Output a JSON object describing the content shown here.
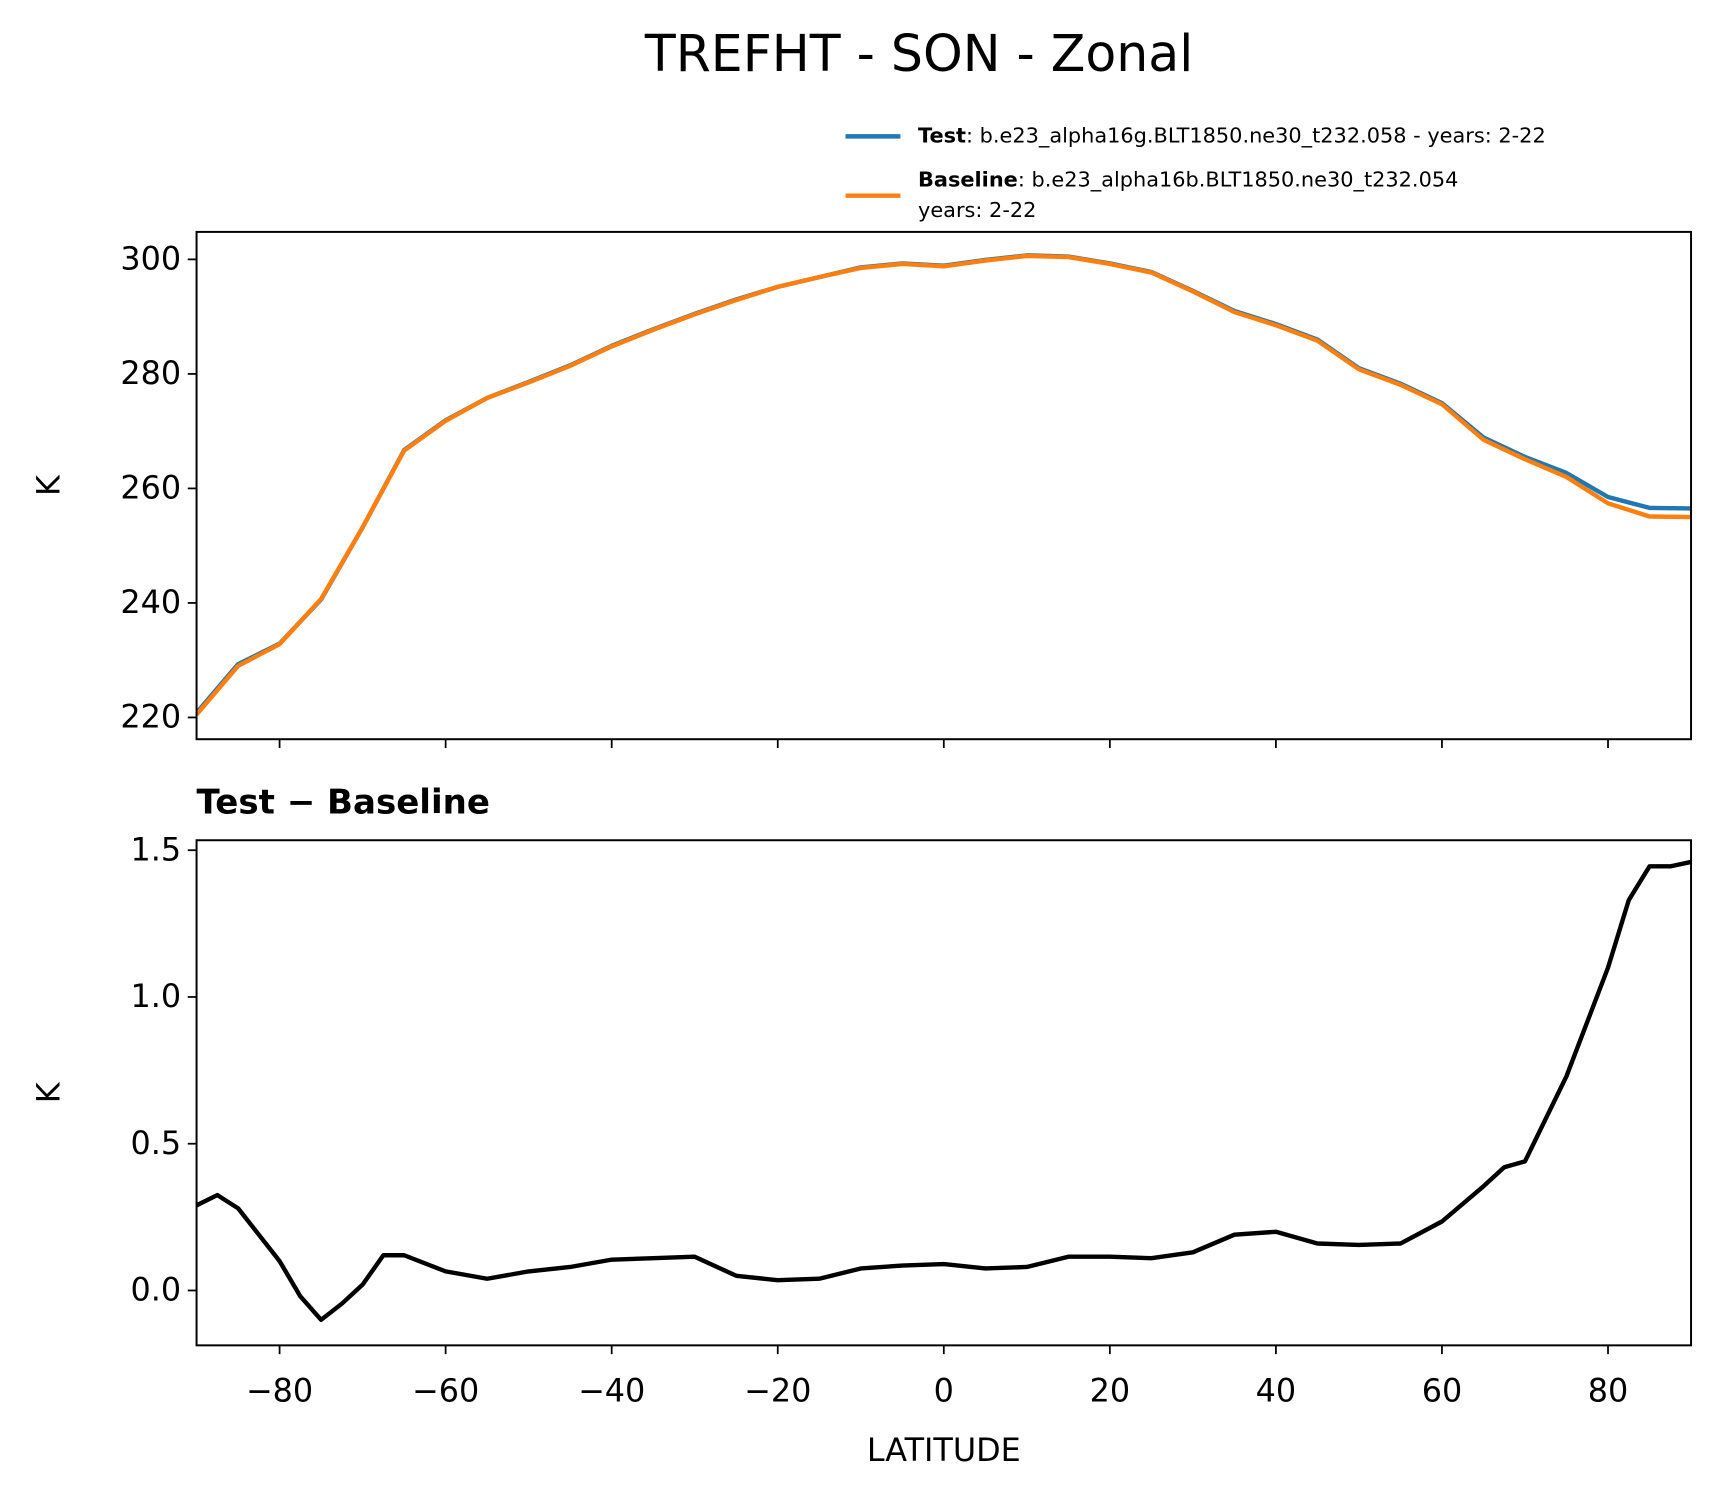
{
  "chart_data": [
    {
      "type": "line",
      "title": "TREFHT - SON - Zonal",
      "ylabel": "K",
      "x": [
        -90,
        -85,
        -80,
        -75,
        -70,
        -65,
        -60,
        -55,
        -50,
        -45,
        -40,
        -35,
        -30,
        -25,
        -20,
        -15,
        -10,
        -5,
        0,
        5,
        10,
        15,
        20,
        25,
        30,
        35,
        40,
        45,
        50,
        55,
        60,
        65,
        70,
        75,
        80,
        85,
        90
      ],
      "series": [
        {
          "name": "Test",
          "description": [
            ": b.e23_alpha16g.BLT1850.ne30_t232.058 - years: 2-22"
          ],
          "color": "#1f77b4",
          "values": [
            220.8,
            229.3,
            232.9,
            240.6,
            253.2,
            266.7,
            271.9,
            275.8,
            278.6,
            281.5,
            284.9,
            287.8,
            290.5,
            293.0,
            295.2,
            296.9,
            298.6,
            299.3,
            298.9,
            299.9,
            300.7,
            300.5,
            299.3,
            297.8,
            294.5,
            291.0,
            288.7,
            286.0,
            281.0,
            278.3,
            274.9,
            268.9,
            265.5,
            262.7,
            258.5,
            256.6,
            256.5
          ]
        },
        {
          "name": "Baseline",
          "description": [
            ": b.e23_alpha16b.BLT1850.ne30_t232.054",
            "years: 2-22"
          ],
          "color": "#ff7f0e",
          "values": [
            220.5,
            229.0,
            232.8,
            240.7,
            253.2,
            266.6,
            271.8,
            275.8,
            278.5,
            281.4,
            284.8,
            287.7,
            290.4,
            292.9,
            295.2,
            296.9,
            298.5,
            299.2,
            298.8,
            299.8,
            300.6,
            300.4,
            299.2,
            297.7,
            294.4,
            290.8,
            288.5,
            285.8,
            280.8,
            278.1,
            274.7,
            268.5,
            265.1,
            262.0,
            257.4,
            255.1,
            255.0
          ]
        }
      ],
      "xlim": [
        -90,
        90
      ],
      "xticks": [
        -80,
        -60,
        -40,
        -20,
        0,
        20,
        40,
        60,
        80
      ],
      "show_xtick_labels": false,
      "ylim": [
        216.2,
        304.8
      ],
      "yticks": [
        220,
        240,
        260,
        280,
        300
      ]
    },
    {
      "type": "line",
      "title": "Test − Baseline",
      "ylabel": "K",
      "xlabel": "LATITUDE",
      "x": [
        -90,
        -87.5,
        -85,
        -82.5,
        -80,
        -77.5,
        -75,
        -72.5,
        -70,
        -67.5,
        -65,
        -60,
        -55,
        -50,
        -45,
        -40,
        -35,
        -30,
        -25,
        -20,
        -15,
        -10,
        -5,
        0,
        5,
        10,
        15,
        20,
        25,
        30,
        35,
        40,
        45,
        50,
        55,
        60,
        65,
        67.5,
        70,
        75,
        80,
        82.5,
        85,
        87.5,
        90
      ],
      "series": [
        {
          "color": "#000000",
          "values": [
            0.29,
            0.325,
            0.28,
            0.19,
            0.1,
            -0.02,
            -0.1,
            -0.045,
            0.02,
            0.12,
            0.12,
            0.065,
            0.04,
            0.065,
            0.08,
            0.105,
            0.11,
            0.115,
            0.05,
            0.035,
            0.04,
            0.075,
            0.085,
            0.09,
            0.075,
            0.08,
            0.115,
            0.115,
            0.11,
            0.13,
            0.19,
            0.2,
            0.16,
            0.155,
            0.16,
            0.235,
            0.355,
            0.42,
            0.44,
            0.73,
            1.1,
            1.33,
            1.445,
            1.445,
            1.46
          ]
        }
      ],
      "xlim": [
        -90,
        90
      ],
      "xticks": [
        {
          "value": -80,
          "label": "−80"
        },
        {
          "value": -60,
          "label": "−60"
        },
        {
          "value": -40,
          "label": "−40"
        },
        {
          "value": -20,
          "label": "−20"
        },
        0,
        20,
        40,
        60,
        80
      ],
      "show_xtick_labels": true,
      "ylim": [
        -0.187,
        1.534
      ],
      "yticks": [
        {
          "value": 0,
          "label": "0.0"
        },
        0.5,
        {
          "value": 1,
          "label": "1.0"
        },
        1.5
      ]
    }
  ]
}
